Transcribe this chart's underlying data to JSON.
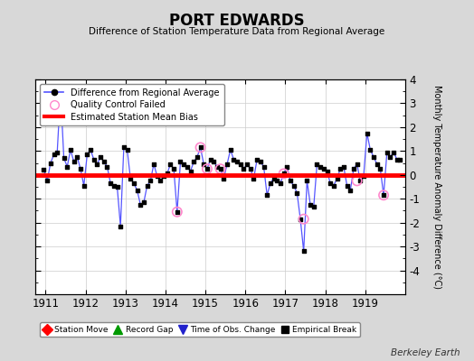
{
  "title": "PORT EDWARDS",
  "subtitle": "Difference of Station Temperature Data from Regional Average",
  "ylabel": "Monthly Temperature Anomaly Difference (°C)",
  "ylim": [
    -5,
    4
  ],
  "bias_line": 0.0,
  "background_color": "#d8d8d8",
  "plot_bg_color": "#ffffff",
  "line_color": "#5555ff",
  "dot_color": "#000000",
  "bias_color": "#ff0000",
  "qc_color": "#ff88cc",
  "watermark": "Berkeley Earth",
  "data_x": [
    1910.958,
    1911.042,
    1911.125,
    1911.208,
    1911.292,
    1911.375,
    1911.458,
    1911.542,
    1911.625,
    1911.708,
    1911.792,
    1911.875,
    1911.958,
    1912.042,
    1912.125,
    1912.208,
    1912.292,
    1912.375,
    1912.458,
    1912.542,
    1912.625,
    1912.708,
    1912.792,
    1912.875,
    1912.958,
    1913.042,
    1913.125,
    1913.208,
    1913.292,
    1913.375,
    1913.458,
    1913.542,
    1913.625,
    1913.708,
    1913.792,
    1913.875,
    1913.958,
    1914.042,
    1914.125,
    1914.208,
    1914.292,
    1914.375,
    1914.458,
    1914.542,
    1914.625,
    1914.708,
    1914.792,
    1914.875,
    1914.958,
    1915.042,
    1915.125,
    1915.208,
    1915.292,
    1915.375,
    1915.458,
    1915.542,
    1915.625,
    1915.708,
    1915.792,
    1915.875,
    1915.958,
    1916.042,
    1916.125,
    1916.208,
    1916.292,
    1916.375,
    1916.458,
    1916.542,
    1916.625,
    1916.708,
    1916.792,
    1916.875,
    1916.958,
    1917.042,
    1917.125,
    1917.208,
    1917.292,
    1917.375,
    1917.458,
    1917.542,
    1917.625,
    1917.708,
    1917.792,
    1917.875,
    1917.958,
    1918.042,
    1918.125,
    1918.208,
    1918.292,
    1918.375,
    1918.458,
    1918.542,
    1918.625,
    1918.708,
    1918.792,
    1918.875,
    1918.958,
    1919.042,
    1919.125,
    1919.208,
    1919.292,
    1919.375,
    1919.458,
    1919.542,
    1919.625,
    1919.708,
    1919.792,
    1919.875
  ],
  "data_y": [
    0.2,
    -0.25,
    0.5,
    0.85,
    0.95,
    3.5,
    0.7,
    0.35,
    1.05,
    0.55,
    0.75,
    0.25,
    -0.45,
    0.85,
    1.05,
    0.65,
    0.45,
    0.75,
    0.55,
    0.35,
    -0.35,
    -0.45,
    -0.5,
    -2.15,
    1.15,
    1.05,
    -0.15,
    -0.35,
    -0.65,
    -1.25,
    -1.15,
    -0.45,
    -0.25,
    0.45,
    -0.05,
    -0.25,
    -0.05,
    0.05,
    0.45,
    0.25,
    -1.55,
    0.55,
    0.45,
    0.35,
    0.15,
    0.55,
    0.75,
    1.15,
    0.45,
    0.25,
    0.65,
    0.55,
    0.35,
    0.25,
    -0.15,
    0.45,
    1.05,
    0.65,
    0.55,
    0.45,
    0.25,
    0.45,
    0.25,
    -0.15,
    0.65,
    0.55,
    0.35,
    -0.85,
    -0.35,
    -0.15,
    -0.25,
    -0.35,
    0.05,
    0.35,
    -0.25,
    -0.45,
    -0.75,
    -1.85,
    -3.2,
    -0.25,
    -1.25,
    -1.35,
    0.45,
    0.35,
    0.25,
    0.15,
    -0.35,
    -0.45,
    -0.15,
    0.25,
    0.35,
    -0.45,
    -0.65,
    0.25,
    0.45,
    -0.25,
    -0.05,
    1.75,
    1.05,
    0.75,
    0.45,
    0.25,
    -0.85,
    0.95,
    0.75,
    0.95,
    0.65,
    0.65
  ],
  "qc_failed_x": [
    1914.292,
    1914.875,
    1915.042,
    1915.375,
    1916.958,
    1917.458,
    1918.792,
    1919.458
  ],
  "qc_failed_y": [
    -1.55,
    1.15,
    0.25,
    0.25,
    0.05,
    -1.85,
    -0.25,
    -0.85
  ],
  "xticks": [
    1911,
    1912,
    1913,
    1914,
    1915,
    1916,
    1917,
    1918,
    1919
  ],
  "yticks": [
    -4,
    -3,
    -2,
    -1,
    0,
    1,
    2,
    3,
    4
  ]
}
